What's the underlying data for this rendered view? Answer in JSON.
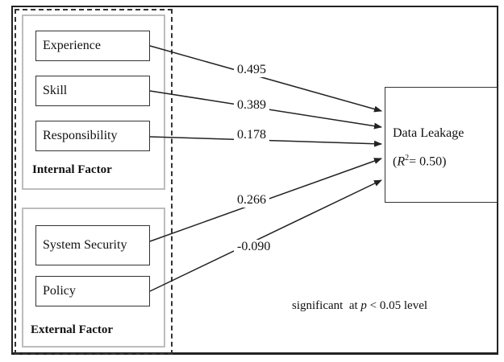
{
  "internal_factor": {
    "label": "Internal Factor",
    "items": [
      {
        "label": "Experience",
        "coefficient": "0.495"
      },
      {
        "label": "Skill",
        "coefficient": "0.389"
      },
      {
        "label": "Responsibility",
        "coefficient": "0.178"
      }
    ]
  },
  "external_factor": {
    "label": "External Factor",
    "items": [
      {
        "label": "System Security",
        "coefficient": "0.266"
      },
      {
        "label": "Policy",
        "coefficient": "-0.090"
      }
    ]
  },
  "outcome": {
    "label": "Data Leakage",
    "r2_open": "(",
    "r2_symbol": "R",
    "r2_superscript": "2",
    "r2_value": "= 0.50)"
  },
  "note": {
    "prefix": "significant  at ",
    "p_symbol": "p",
    "suffix": " < 0.05 level"
  },
  "colors": {
    "line": "#222222",
    "group_border": "#bdbdbd"
  }
}
